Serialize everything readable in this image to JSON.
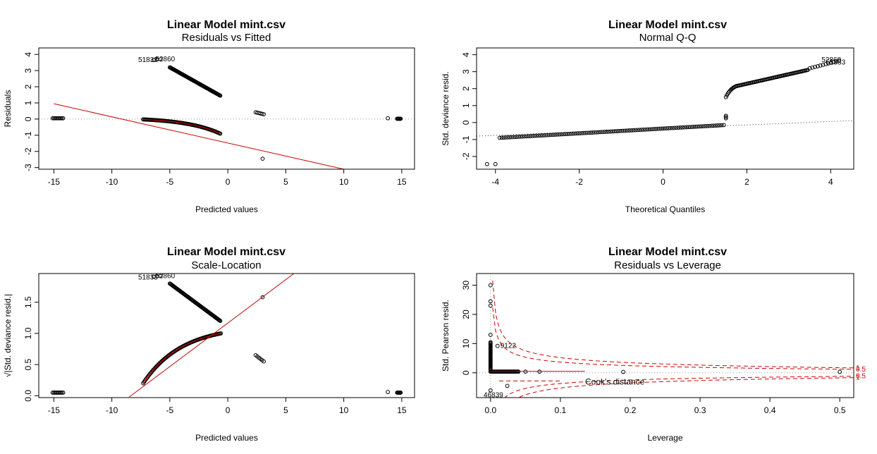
{
  "chart_data": [
    {
      "type": "scatter",
      "panel": "residuals-vs-fitted",
      "title": "Linear Model mint.csv",
      "subtitle": "Residuals vs Fitted",
      "xlabel": "Predicted values",
      "ylabel": "Residuals",
      "xlim": [
        -16.3,
        16.1
      ],
      "ylim": [
        -3.1,
        4.4
      ],
      "x_ticks": [
        -15,
        -10,
        -5,
        0,
        5,
        10,
        15
      ],
      "y_ticks": [
        -3,
        -2,
        -1,
        0,
        1,
        2,
        3,
        4
      ],
      "reference_line_y": 0,
      "series": [
        {
          "clusters": [
            {
              "x_from": -15.1,
              "x_to": -14.2,
              "y_from": 0.05,
              "y_to": 0.05,
              "n": 10
            },
            {
              "x_from": -5.0,
              "x_to": -0.65,
              "y_from": 3.2,
              "y_to": 1.45,
              "n": 80
            },
            {
              "x_from": -7.3,
              "x_to": -0.65,
              "y_from": -0.02,
              "y_to": -0.9,
              "n": 90,
              "curve": 2.2
            },
            {
              "x_from": 2.4,
              "x_to": 3.1,
              "y_from": 0.42,
              "y_to": 0.3,
              "n": 6
            },
            {
              "x_from": 14.6,
              "x_to": 14.9,
              "y_from": 0.02,
              "y_to": 0.02,
              "n": 6
            }
          ],
          "points": [
            [
              -6.4,
              3.65
            ],
            [
              -6.1,
              3.7
            ],
            [
              -5.8,
              3.7
            ],
            [
              3.0,
              -2.45
            ],
            [
              13.8,
              0.05
            ]
          ]
        }
      ],
      "fit_line": [
        [
          -15,
          0.95
        ],
        [
          10,
          -3.1
        ]
      ],
      "point_labels": [
        {
          "text": "51833",
          "x": -6.4,
          "y": 3.65
        },
        {
          "text": "52860",
          "x": -6.0,
          "y": 3.7
        }
      ]
    },
    {
      "type": "scatter",
      "panel": "normal-qq",
      "title": "Linear Model mint.csv",
      "subtitle": "Normal Q-Q",
      "xlabel": "Theoretical Quantiles",
      "ylabel": "Std. deviance resid.",
      "xlim": [
        -4.45,
        4.55
      ],
      "ylim": [
        -2.75,
        4.4
      ],
      "x_ticks": [
        -4,
        -2,
        0,
        2,
        4
      ],
      "y_ticks": [
        -2,
        -1,
        0,
        1,
        2,
        3,
        4
      ],
      "reference_line": [
        [
          -4.45,
          -0.8
        ],
        [
          4.55,
          0.12
        ]
      ],
      "series": [
        {
          "clusters": [
            {
              "x_from": -3.9,
              "x_to": 1.45,
              "y_from": -0.9,
              "y_to": -0.15,
              "n": 110
            },
            {
              "x_from": 1.5,
              "x_to": 1.5,
              "y_from": 0.25,
              "y_to": 0.4,
              "n": 3
            },
            {
              "x_from": 1.5,
              "x_to": 1.75,
              "y_from": 1.5,
              "y_to": 2.15,
              "n": 12,
              "curve": -1.6
            },
            {
              "x_from": 1.75,
              "x_to": 3.45,
              "y_from": 2.15,
              "y_to": 3.1,
              "n": 65
            },
            {
              "x_from": 3.5,
              "x_to": 4.2,
              "y_from": 3.2,
              "y_to": 3.65,
              "n": 12
            }
          ],
          "points": [
            [
              -4.2,
              -2.45
            ],
            [
              -4.0,
              -2.45
            ]
          ]
        }
      ],
      "point_labels": [
        {
          "text": "52860",
          "x": 3.85,
          "y": 3.7
        },
        {
          "text": "51833",
          "x": 3.95,
          "y": 3.55
        }
      ]
    },
    {
      "type": "scatter",
      "panel": "scale-location",
      "title": "Linear Model mint.csv",
      "subtitle": "Scale-Location",
      "xlabel": "Predicted values",
      "ylabel": "√|Std. deviance resid.|",
      "xlim": [
        -16.3,
        16.1
      ],
      "ylim": [
        -0.03,
        1.96
      ],
      "x_ticks": [
        -15,
        -10,
        -5,
        0,
        5,
        10,
        15
      ],
      "y_ticks": [
        0.0,
        0.5,
        1.0,
        1.5
      ],
      "y_tick_labels": [
        "0.0",
        "0.5",
        "1.0",
        "1.5"
      ],
      "series": [
        {
          "clusters": [
            {
              "x_from": -15.1,
              "x_to": -14.2,
              "y_from": 0.05,
              "y_to": 0.05,
              "n": 10
            },
            {
              "x_from": -5.0,
              "x_to": -0.65,
              "y_from": 1.8,
              "y_to": 1.2,
              "n": 80
            },
            {
              "x_from": -7.3,
              "x_to": -0.6,
              "y_from": 0.2,
              "y_to": 1.0,
              "n": 90,
              "curve": -2.0
            },
            {
              "x_from": 2.4,
              "x_to": 3.1,
              "y_from": 0.65,
              "y_to": 0.55,
              "n": 6
            },
            {
              "x_from": 14.6,
              "x_to": 14.9,
              "y_from": 0.05,
              "y_to": 0.05,
              "n": 6
            }
          ],
          "points": [
            [
              -6.4,
              1.91
            ],
            [
              -6.1,
              1.92
            ],
            [
              -5.8,
              1.92
            ],
            [
              3.0,
              1.58
            ],
            [
              13.8,
              0.06
            ]
          ]
        }
      ],
      "fit_line": [
        [
          -8.5,
          -0.02
        ],
        [
          5.7,
          1.96
        ]
      ],
      "point_labels": [
        {
          "text": "51833",
          "x": -6.4,
          "y": 1.9
        },
        {
          "text": "52860",
          "x": -6.0,
          "y": 1.92
        }
      ]
    },
    {
      "type": "scatter",
      "panel": "residuals-vs-leverage",
      "title": "Linear Model mint.csv",
      "subtitle": "Residuals vs Leverage",
      "xlabel": "Leverage",
      "ylabel": "Std. Pearson resid.",
      "xlim": [
        -0.02,
        0.52
      ],
      "ylim": [
        -8.5,
        34
      ],
      "x_ticks": [
        0.0,
        0.1,
        0.2,
        0.3,
        0.4,
        0.5
      ],
      "x_tick_labels": [
        "0.0",
        "0.1",
        "0.2",
        "0.3",
        "0.4",
        "0.5"
      ],
      "y_ticks": [
        0,
        10,
        20,
        30
      ],
      "series": [
        {
          "clusters": [
            {
              "x_from": 0.0,
              "x_to": 0.0,
              "y_from": 1.0,
              "y_to": 10.5,
              "n": 30
            },
            {
              "x_from": 0.0,
              "x_to": 0.04,
              "y_from": 0.4,
              "y_to": 0.4,
              "n": 40
            }
          ],
          "points": [
            [
              0.0,
              30.0
            ],
            [
              0.0,
              24.5
            ],
            [
              0.0,
              23.0
            ],
            [
              0.0,
              13.0
            ],
            [
              0.01,
              9.2
            ],
            [
              0.024,
              -4.5
            ],
            [
              0.0,
              -6.0
            ],
            [
              0.05,
              0.4
            ],
            [
              0.07,
              0.4
            ],
            [
              0.19,
              0.3
            ],
            [
              0.5,
              0.3
            ]
          ]
        }
      ],
      "smooth_line": [
        [
          0.0,
          0.5
        ],
        [
          0.135,
          0.5
        ]
      ],
      "cooks_contours": [
        {
          "level": 0.5,
          "label": "0.5"
        },
        {
          "level": 1.0,
          "label": "1"
        }
      ],
      "legend": {
        "text": "Cook's distance",
        "placement": "bottom-left"
      },
      "point_labels": [
        {
          "text": "9122",
          "x": 0.01,
          "y": 9.2
        },
        {
          "text": "46839",
          "x": 0.0,
          "y": -6.0
        }
      ]
    }
  ]
}
